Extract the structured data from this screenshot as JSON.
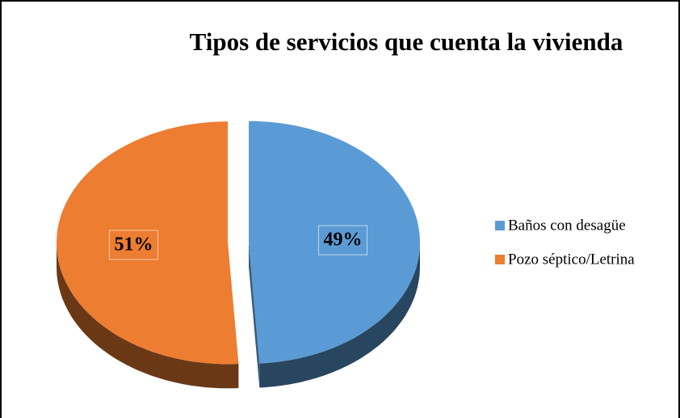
{
  "chart_data": {
    "type": "pie",
    "title": "Tipos de servicios que cuenta la vivienda",
    "categories": [
      "Baños con desagüe",
      "Pozo séptico/Letrina"
    ],
    "values": [
      49,
      51
    ],
    "value_labels": [
      "49%",
      "51%"
    ],
    "colors": [
      "#5b9bd5",
      "#ed7d31"
    ],
    "legend": "right"
  }
}
